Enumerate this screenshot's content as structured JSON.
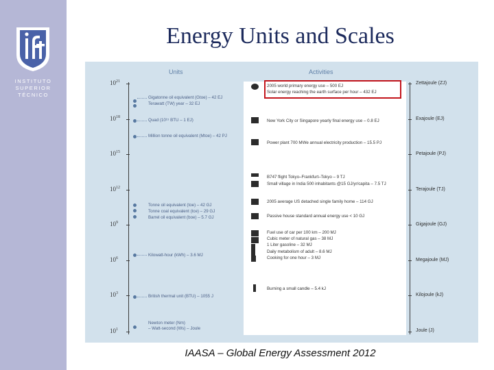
{
  "slide": {
    "title": "Energy Units and Scales",
    "caption": "IAASA – Global Energy Assessment 2012",
    "institution": [
      "INSTITUTO",
      "SUPERIOR",
      "TÉCNICO"
    ],
    "logo_icon": "ist-shield-logo"
  },
  "figure": {
    "units_header": "Units",
    "activities_header": "Activities",
    "axis_base": "10",
    "exponents": [
      "21",
      "18",
      "15",
      "12",
      "9",
      "6",
      "3",
      "1"
    ],
    "units": [
      {
        "text": "Gigatonne oil equivalent (Gtoe) – 42 EJ"
      },
      {
        "text": "Terawatt (TW) year – 32 EJ"
      },
      {
        "text": "Quad (10¹⁵ BTU – 1 EJ)"
      },
      {
        "text": "Million tonne oil equivalent (Mtoe) – 42 PJ"
      },
      {
        "text": "Tonne oil equivalent (toe) – 42 GJ"
      },
      {
        "text": "Tonne coal equivalent (tce) – 29 GJ"
      },
      {
        "text": "Barrel oil equivalent (boe) – 5.7 GJ"
      },
      {
        "text": "Kilowatt-hour (kWh) – 3.6 MJ"
      },
      {
        "text": "British thermal unit (BTU) – 1055 J"
      },
      {
        "text": "Newton meter (Nm)"
      },
      {
        "text": "– Watt-second (Ws) – Joule"
      }
    ],
    "activities": [
      {
        "text": "2005 world primary energy use – 500 EJ",
        "icon": "globe-icon"
      },
      {
        "text": "Solar energy reaching the earth surface per hour – 432 EJ",
        "icon": "sun-icon"
      },
      {
        "text": "New York City or Singapore yearly final energy use – 0.8 EJ",
        "icon": "city-icon"
      },
      {
        "text": "Power plant 700 MWe annual electricity production – 15.5 PJ",
        "icon": "power-plant-icon"
      },
      {
        "text": "B747 flight Tokyo–Frankfurt–Tokyo – 9 TJ",
        "icon": "airplane-icon"
      },
      {
        "text": "Small village in India 500 inhabitants @15 GJ/yr/capita – 7.5 TJ",
        "icon": "village-icon"
      },
      {
        "text": "2005 average US detached single family home – 114 GJ",
        "icon": "house-icon"
      },
      {
        "text": "Passive house standard annual energy use < 10 GJ",
        "icon": "passive-house-icon"
      },
      {
        "text": "Fuel use of car per 100 km – 200 MJ",
        "icon": "car-icon"
      },
      {
        "text": "Cubic meter of natural gas – 38 MJ",
        "icon": "gas-icon"
      },
      {
        "text": "1 Liter gasoline – 32 MJ",
        "icon": "fuel-icon"
      },
      {
        "text": "Daily metabolism of adult – 8.6 MJ",
        "icon": "person-icon"
      },
      {
        "text": "Cooking for one hour – 3 MJ",
        "icon": "stove-icon"
      },
      {
        "text": "Burning a small candle – 5.4 kJ",
        "icon": "candle-icon"
      }
    ],
    "prefixes": [
      "Zettajoule (ZJ)",
      "Exajoule (EJ)",
      "Petajoule (PJ)",
      "Terajoule (TJ)",
      "Gigajoule (GJ)",
      "Megajoule (MJ)",
      "Kilojoule (kJ)",
      "Joule (J)"
    ],
    "colors": {
      "background": "#d2e1ec",
      "highlight": "#c2141b",
      "units_text": "#4a5f86"
    }
  }
}
